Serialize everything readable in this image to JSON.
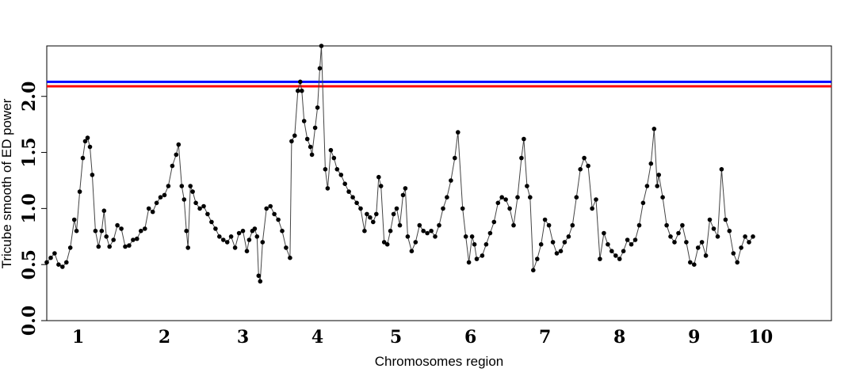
{
  "chart_data": {
    "type": "line",
    "title": "",
    "xlabel": "Chromosomes region",
    "ylabel": "Tricube smooth of ED power",
    "ylim": [
      0.0,
      2.45
    ],
    "xlim": [
      0.5,
      10.5
    ],
    "yticks": [
      {
        "value": 0.0,
        "label": "0.0"
      },
      {
        "value": 0.5,
        "label": "0.5"
      },
      {
        "value": 1.0,
        "label": "1.0"
      },
      {
        "value": 1.5,
        "label": "1.5"
      },
      {
        "value": 2.0,
        "label": "2.0"
      }
    ],
    "xticks": [
      {
        "value": 0.9,
        "label": "1"
      },
      {
        "value": 2.0,
        "label": "2"
      },
      {
        "value": 3.0,
        "label": "3"
      },
      {
        "value": 3.95,
        "label": "4"
      },
      {
        "value": 4.95,
        "label": "5"
      },
      {
        "value": 5.9,
        "label": "6"
      },
      {
        "value": 6.85,
        "label": "7"
      },
      {
        "value": 7.8,
        "label": "8"
      },
      {
        "value": 8.75,
        "label": "9"
      },
      {
        "value": 9.6,
        "label": "10"
      }
    ],
    "thresholds": [
      {
        "value": 2.13,
        "color": "#0000ff"
      },
      {
        "value": 2.09,
        "color": "#ff0000"
      }
    ],
    "grid": false,
    "series": [
      {
        "color": "#000000",
        "points": [
          [
            0.5,
            0.52
          ],
          [
            0.55,
            0.56
          ],
          [
            0.6,
            0.6
          ],
          [
            0.65,
            0.5
          ],
          [
            0.7,
            0.48
          ],
          [
            0.75,
            0.52
          ],
          [
            0.8,
            0.65
          ],
          [
            0.85,
            0.9
          ],
          [
            0.88,
            0.8
          ],
          [
            0.92,
            1.15
          ],
          [
            0.96,
            1.45
          ],
          [
            0.99,
            1.6
          ],
          [
            1.02,
            1.63
          ],
          [
            1.05,
            1.55
          ],
          [
            1.08,
            1.3
          ],
          [
            1.12,
            0.8
          ],
          [
            1.16,
            0.66
          ],
          [
            1.2,
            0.8
          ],
          [
            1.23,
            0.98
          ],
          [
            1.26,
            0.75
          ],
          [
            1.3,
            0.66
          ],
          [
            1.35,
            0.72
          ],
          [
            1.4,
            0.85
          ],
          [
            1.45,
            0.82
          ],
          [
            1.5,
            0.66
          ],
          [
            1.55,
            0.67
          ],
          [
            1.6,
            0.72
          ],
          [
            1.65,
            0.73
          ],
          [
            1.7,
            0.8
          ],
          [
            1.75,
            0.82
          ],
          [
            1.8,
            1.0
          ],
          [
            1.85,
            0.97
          ],
          [
            1.9,
            1.05
          ],
          [
            1.95,
            1.1
          ],
          [
            2.0,
            1.12
          ],
          [
            2.05,
            1.2
          ],
          [
            2.1,
            1.38
          ],
          [
            2.15,
            1.48
          ],
          [
            2.18,
            1.57
          ],
          [
            2.22,
            1.2
          ],
          [
            2.25,
            1.08
          ],
          [
            2.28,
            0.8
          ],
          [
            2.3,
            0.65
          ],
          [
            2.33,
            1.2
          ],
          [
            2.36,
            1.15
          ],
          [
            2.4,
            1.05
          ],
          [
            2.45,
            1.0
          ],
          [
            2.5,
            1.02
          ],
          [
            2.55,
            0.95
          ],
          [
            2.6,
            0.88
          ],
          [
            2.65,
            0.82
          ],
          [
            2.7,
            0.75
          ],
          [
            2.75,
            0.72
          ],
          [
            2.8,
            0.7
          ],
          [
            2.85,
            0.75
          ],
          [
            2.9,
            0.65
          ],
          [
            2.95,
            0.78
          ],
          [
            3.0,
            0.8
          ],
          [
            3.05,
            0.62
          ],
          [
            3.08,
            0.72
          ],
          [
            3.12,
            0.8
          ],
          [
            3.15,
            0.82
          ],
          [
            3.18,
            0.75
          ],
          [
            3.2,
            0.4
          ],
          [
            3.22,
            0.35
          ],
          [
            3.25,
            0.7
          ],
          [
            3.3,
            1.0
          ],
          [
            3.35,
            1.02
          ],
          [
            3.4,
            0.95
          ],
          [
            3.45,
            0.9
          ],
          [
            3.5,
            0.8
          ],
          [
            3.55,
            0.65
          ],
          [
            3.6,
            0.56
          ],
          [
            3.62,
            1.6
          ],
          [
            3.66,
            1.65
          ],
          [
            3.7,
            2.05
          ],
          [
            3.73,
            2.13
          ],
          [
            3.75,
            2.05
          ],
          [
            3.78,
            1.78
          ],
          [
            3.82,
            1.62
          ],
          [
            3.86,
            1.55
          ],
          [
            3.88,
            1.48
          ],
          [
            3.92,
            1.72
          ],
          [
            3.95,
            1.9
          ],
          [
            3.98,
            2.25
          ],
          [
            4.0,
            2.45
          ],
          [
            4.05,
            1.35
          ],
          [
            4.08,
            1.18
          ],
          [
            4.12,
            1.52
          ],
          [
            4.16,
            1.45
          ],
          [
            4.2,
            1.35
          ],
          [
            4.25,
            1.3
          ],
          [
            4.3,
            1.22
          ],
          [
            4.35,
            1.15
          ],
          [
            4.4,
            1.1
          ],
          [
            4.45,
            1.05
          ],
          [
            4.5,
            1.0
          ],
          [
            4.55,
            0.8
          ],
          [
            4.58,
            0.95
          ],
          [
            4.62,
            0.92
          ],
          [
            4.66,
            0.88
          ],
          [
            4.7,
            0.95
          ],
          [
            4.73,
            1.28
          ],
          [
            4.76,
            1.2
          ],
          [
            4.8,
            0.7
          ],
          [
            4.84,
            0.68
          ],
          [
            4.88,
            0.8
          ],
          [
            4.92,
            0.95
          ],
          [
            4.96,
            1.0
          ],
          [
            5.0,
            0.85
          ],
          [
            5.04,
            1.12
          ],
          [
            5.07,
            1.18
          ],
          [
            5.1,
            0.75
          ],
          [
            5.15,
            0.62
          ],
          [
            5.2,
            0.7
          ],
          [
            5.25,
            0.85
          ],
          [
            5.3,
            0.8
          ],
          [
            5.35,
            0.78
          ],
          [
            5.4,
            0.8
          ],
          [
            5.45,
            0.75
          ],
          [
            5.5,
            0.85
          ],
          [
            5.55,
            1.0
          ],
          [
            5.6,
            1.1
          ],
          [
            5.65,
            1.25
          ],
          [
            5.7,
            1.45
          ],
          [
            5.74,
            1.68
          ],
          [
            5.8,
            1.0
          ],
          [
            5.84,
            0.75
          ],
          [
            5.88,
            0.52
          ],
          [
            5.92,
            0.75
          ],
          [
            5.95,
            0.68
          ],
          [
            5.98,
            0.55
          ],
          [
            6.05,
            0.58
          ],
          [
            6.1,
            0.68
          ],
          [
            6.15,
            0.78
          ],
          [
            6.2,
            0.88
          ],
          [
            6.25,
            1.05
          ],
          [
            6.3,
            1.1
          ],
          [
            6.35,
            1.08
          ],
          [
            6.4,
            1.0
          ],
          [
            6.45,
            0.85
          ],
          [
            6.5,
            1.1
          ],
          [
            6.55,
            1.45
          ],
          [
            6.58,
            1.62
          ],
          [
            6.62,
            1.2
          ],
          [
            6.66,
            1.1
          ],
          [
            6.7,
            0.45
          ],
          [
            6.75,
            0.55
          ],
          [
            6.8,
            0.68
          ],
          [
            6.85,
            0.9
          ],
          [
            6.9,
            0.85
          ],
          [
            6.95,
            0.7
          ],
          [
            7.0,
            0.6
          ],
          [
            7.05,
            0.62
          ],
          [
            7.1,
            0.7
          ],
          [
            7.15,
            0.75
          ],
          [
            7.2,
            0.85
          ],
          [
            7.25,
            1.1
          ],
          [
            7.3,
            1.35
          ],
          [
            7.35,
            1.45
          ],
          [
            7.4,
            1.38
          ],
          [
            7.45,
            1.0
          ],
          [
            7.5,
            1.08
          ],
          [
            7.55,
            0.55
          ],
          [
            7.6,
            0.78
          ],
          [
            7.65,
            0.68
          ],
          [
            7.7,
            0.62
          ],
          [
            7.75,
            0.58
          ],
          [
            7.8,
            0.55
          ],
          [
            7.85,
            0.62
          ],
          [
            7.9,
            0.72
          ],
          [
            7.95,
            0.68
          ],
          [
            8.0,
            0.72
          ],
          [
            8.05,
            0.85
          ],
          [
            8.1,
            1.05
          ],
          [
            8.15,
            1.2
          ],
          [
            8.2,
            1.4
          ],
          [
            8.24,
            1.71
          ],
          [
            8.28,
            1.2
          ],
          [
            8.3,
            1.3
          ],
          [
            8.35,
            1.1
          ],
          [
            8.4,
            0.85
          ],
          [
            8.45,
            0.75
          ],
          [
            8.5,
            0.7
          ],
          [
            8.55,
            0.78
          ],
          [
            8.6,
            0.85
          ],
          [
            8.65,
            0.7
          ],
          [
            8.7,
            0.52
          ],
          [
            8.75,
            0.5
          ],
          [
            8.8,
            0.65
          ],
          [
            8.85,
            0.7
          ],
          [
            8.9,
            0.58
          ],
          [
            8.95,
            0.9
          ],
          [
            9.0,
            0.82
          ],
          [
            9.05,
            0.75
          ],
          [
            9.1,
            1.35
          ],
          [
            9.15,
            0.9
          ],
          [
            9.2,
            0.8
          ],
          [
            9.25,
            0.6
          ],
          [
            9.3,
            0.52
          ],
          [
            9.35,
            0.65
          ],
          [
            9.4,
            0.75
          ],
          [
            9.45,
            0.7
          ],
          [
            9.5,
            0.75
          ]
        ]
      }
    ]
  }
}
